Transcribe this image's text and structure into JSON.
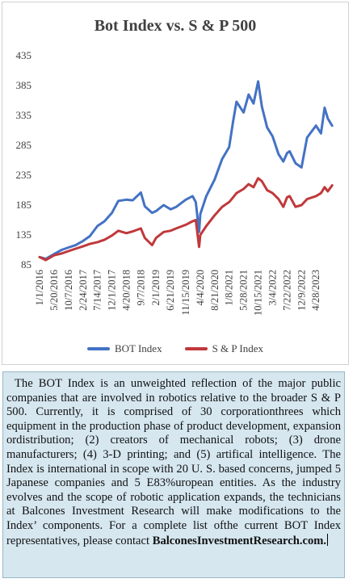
{
  "chart_data": {
    "type": "line",
    "title": "Bot Index vs. S & P 500",
    "ylim": [
      85,
      435
    ],
    "yticks": [
      "435",
      "385",
      "335",
      "285",
      "235",
      "185",
      "135",
      "85"
    ],
    "xticks": [
      "1/1/2016",
      "5/20/2016",
      "10/7/2016",
      "2/24/2017",
      "7/14/2017",
      "12/1/2017",
      "4/20/2018",
      "9/7/2018",
      "2/1/2019",
      "6/21/2019",
      "11/15/2019",
      "4/4/2020",
      "8/21/2020",
      "1/8/2021",
      "5/28/2021",
      "10/15/2021",
      "3/4/2022",
      "7/22/2022",
      "12/9/2022",
      "4/28/2023"
    ],
    "x": [
      "1/1/2016",
      "3/1/2016",
      "5/20/2016",
      "8/1/2016",
      "10/7/2016",
      "12/15/2016",
      "2/24/2017",
      "5/1/2017",
      "7/14/2017",
      "9/20/2017",
      "12/1/2017",
      "2/1/2018",
      "4/20/2018",
      "6/20/2018",
      "9/7/2018",
      "10/15/2018",
      "12/24/2018",
      "2/1/2019",
      "4/15/2019",
      "6/21/2019",
      "8/15/2019",
      "11/15/2019",
      "1/20/2020",
      "2/20/2020",
      "3/23/2020",
      "4/4/2020",
      "6/1/2020",
      "8/21/2020",
      "11/1/2020",
      "1/8/2021",
      "2/15/2021",
      "3/20/2021",
      "5/28/2021",
      "7/15/2021",
      "9/1/2021",
      "10/15/2021",
      "11/20/2021",
      "1/10/2022",
      "3/4/2022",
      "5/1/2022",
      "6/16/2022",
      "7/22/2022",
      "8/16/2022",
      "10/12/2022",
      "12/9/2022",
      "2/1/2023",
      "4/28/2023",
      "6/15/2023",
      "7/20/2023",
      "8/20/2023",
      "10/1/2023"
    ],
    "series": [
      {
        "name": "BOT Index",
        "color": "#4472c4",
        "values": [
          98,
          95,
          103,
          110,
          114,
          118,
          125,
          133,
          150,
          158,
          172,
          192,
          194,
          193,
          206,
          183,
          172,
          175,
          185,
          178,
          182,
          194,
          200,
          190,
          140,
          170,
          200,
          228,
          262,
          282,
          325,
          358,
          340,
          370,
          355,
          392,
          350,
          315,
          300,
          270,
          258,
          272,
          275,
          255,
          248,
          298,
          318,
          305,
          348,
          330,
          318
        ]
      },
      {
        "name": "S & P Index",
        "color": "#c0393b",
        "values": [
          98,
          93,
          101,
          104,
          108,
          112,
          116,
          120,
          123,
          127,
          134,
          142,
          138,
          141,
          146,
          130,
          118,
          130,
          140,
          142,
          146,
          152,
          158,
          160,
          115,
          135,
          150,
          168,
          182,
          190,
          198,
          205,
          212,
          220,
          215,
          230,
          225,
          210,
          205,
          195,
          182,
          198,
          200,
          182,
          185,
          195,
          200,
          205,
          215,
          208,
          218
        ]
      }
    ],
    "grid": false,
    "legend": "bottom"
  },
  "description": {
    "body": "The BOT Index is an unweighted reflection of the major public companies that are involved in robotics relative to the broader S & P 500. Currently, it is comprised of 30 corporationthrees which equipment in the production phase of product development, expansion ordistribution; (2) creators of mechanical robots; (3) drone manufacturers; (4) 3-D printing; and (5) artifical intelligence. The Index is international in scope with 20 U. S. based concerns, jumped 5 Japanese companies and 5 E83%uropean entities. As the industry evolves and the scope of robotic application expands, the technicians at Balcones Investment Research will make modifications to the Index’ components. For a  complete list ofthe current BOT Index representatives, please contact ",
    "link": "BalconesInvestmentResearch.com."
  }
}
